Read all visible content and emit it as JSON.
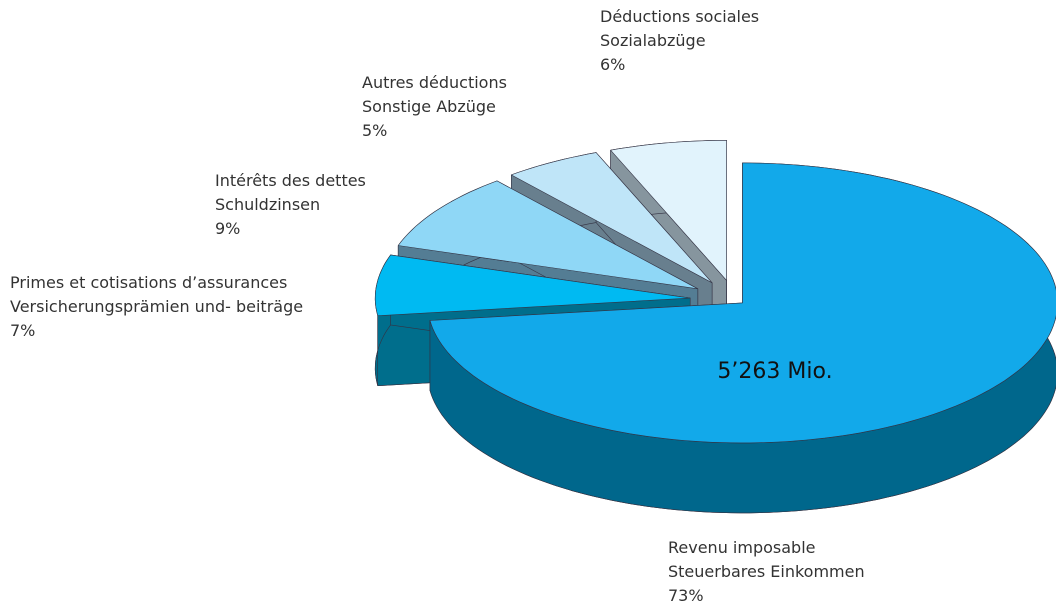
{
  "chart_data": {
    "type": "pie3d",
    "categories": [
      [
        "Revenu imposable",
        "Steuerbares Einkommen"
      ],
      [
        "Primes et cotisations d’assurances",
        "Versicherungsprämien und- beiträge"
      ],
      [
        "Intérêts des dettes",
        "Schuldzinsen"
      ],
      [
        "Autres déductions",
        "Sonstige Abzüge"
      ],
      [
        "Déductions sociales",
        "Sozialabzüge"
      ]
    ],
    "values": [
      73,
      7,
      9,
      5,
      6
    ],
    "value_labels": [
      "73%",
      "7%",
      "9%",
      "5%",
      "6%"
    ],
    "colors": [
      "#12a9ea",
      "#00baf2",
      "#8fd7f6",
      "#bfe5f8",
      "#e1f3fc"
    ],
    "side_colors": [
      "#00678c",
      "#006e8c",
      "#547d94",
      "#687f8e",
      "#86959e"
    ],
    "annotation": "5’263 Mio."
  }
}
